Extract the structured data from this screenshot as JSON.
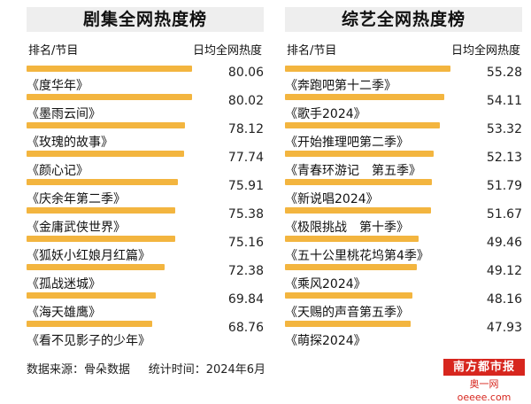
{
  "footer": {
    "source": "数据来源：骨朵数据",
    "time": "统计时间：2024年6月"
  },
  "logo": {
    "top": "南方都市报",
    "bottom": "奥一网oeeee.com"
  },
  "colors": {
    "bar": "#f3b53f",
    "logo_red": "#d7261e",
    "title_bg": "#eeeeee"
  },
  "chart_data": [
    {
      "type": "bar",
      "orientation": "horizontal",
      "title": "剧集全网热度榜",
      "header_left": "排名/节目",
      "header_right": "日均全网热度",
      "categories": [
        "《度华年》",
        "《墨雨云间》",
        "《玫瑰的故事》",
        "《颜心记》",
        "《庆余年第二季》",
        "《金庸武侠世界》",
        "《狐妖小红娘月红篇》",
        "《孤战迷城》",
        "《海天雄鹰》",
        "《看不见影子的少年》"
      ],
      "values": [
        80.06,
        80.02,
        78.12,
        77.74,
        75.91,
        75.38,
        75.16,
        72.38,
        69.84,
        68.76
      ],
      "value_labels": [
        "80.06",
        "80.02",
        "78.12",
        "77.74",
        "75.91",
        "75.38",
        "75.16",
        "72.38",
        "69.84",
        "68.76"
      ],
      "grid": false,
      "legend": "none"
    },
    {
      "type": "bar",
      "orientation": "horizontal",
      "title": "综艺全网热度榜",
      "header_left": "排名/节目",
      "header_right": "日均全网热度",
      "categories": [
        "《奔跑吧第十二季》",
        "《歌手2024》",
        "《开始推理吧第二季》",
        "《青春环游记　第五季》",
        "《新说唱2024》",
        "《极限挑战　第十季》",
        "《五十公里桃花坞第4季》",
        "《乘风2024》",
        "《天赐的声音第五季》",
        "《萌探2024》"
      ],
      "values": [
        55.28,
        54.11,
        53.32,
        52.13,
        51.79,
        51.67,
        49.46,
        49.12,
        48.16,
        47.93
      ],
      "value_labels": [
        "55.28",
        "54.11",
        "53.32",
        "52.13",
        "51.79",
        "51.67",
        "49.46",
        "49.12",
        "48.16",
        "47.93"
      ],
      "grid": false,
      "legend": "none"
    }
  ]
}
